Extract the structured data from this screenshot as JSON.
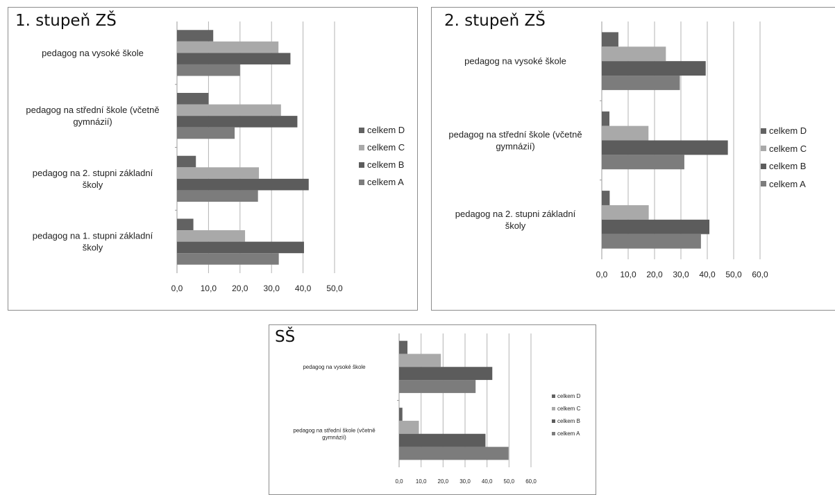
{
  "colors": {
    "celkem A": "#7c7c7c",
    "celkem B": "#5c5c5c",
    "celkem C": "#a9a9a9",
    "celkem D": "#626262",
    "gridline": "#b3b3b3"
  },
  "chart_data": [
    {
      "type": "bar",
      "orientation": "horizontal",
      "title": "1. stupeň ZŠ",
      "categories": [
        "pedagog na vysoké škole",
        "pedagog na střední škole (včetně gymnázií)",
        "pedagog na 2. stupni základní školy",
        "pedagog na 1. stupni základní školy"
      ],
      "series": [
        {
          "name": "celkem D",
          "values": [
            11.5,
            10.0,
            6.0,
            5.2
          ]
        },
        {
          "name": "celkem C",
          "values": [
            32.2,
            33.0,
            26.0,
            21.6
          ]
        },
        {
          "name": "celkem B",
          "values": [
            36.0,
            38.2,
            41.8,
            40.3
          ]
        },
        {
          "name": "celkem A",
          "values": [
            20.0,
            18.3,
            25.7,
            32.3
          ]
        }
      ],
      "xlim": [
        0,
        50
      ],
      "xticks": [
        "0,0",
        "10,0",
        "20,0",
        "30,0",
        "40,0",
        "50,0"
      ],
      "grid": true,
      "legend": "right",
      "legend_entries": [
        "celkem D",
        "celkem C",
        "celkem B",
        "celkem A"
      ]
    },
    {
      "type": "bar",
      "orientation": "horizontal",
      "title": "2. stupeň ZŠ",
      "categories": [
        "pedagog na vysoké škole",
        "pedagog na střední škole (včetně gymnázií)",
        "pedagog na 2. stupni základní školy"
      ],
      "series": [
        {
          "name": "celkem D",
          "values": [
            6.3,
            2.9,
            3.0
          ]
        },
        {
          "name": "celkem C",
          "values": [
            24.3,
            17.7,
            17.8
          ]
        },
        {
          "name": "celkem B",
          "values": [
            39.4,
            47.8,
            40.8
          ]
        },
        {
          "name": "celkem A",
          "values": [
            29.6,
            31.3,
            37.6
          ]
        }
      ],
      "xlim": [
        0,
        60
      ],
      "xticks": [
        "0,0",
        "10,0",
        "20,0",
        "30,0",
        "40,0",
        "50,0",
        "60,0"
      ],
      "grid": true,
      "legend": "right",
      "legend_entries": [
        "celkem D",
        "celkem C",
        "celkem B",
        "celkem A"
      ]
    },
    {
      "type": "bar",
      "orientation": "horizontal",
      "title": "SŠ",
      "categories": [
        "pedagog na vysoké škole",
        "pedagog na střední škole (včetně gymnázií)"
      ],
      "series": [
        {
          "name": "celkem D",
          "values": [
            3.8,
            1.5
          ]
        },
        {
          "name": "celkem C",
          "values": [
            19.0,
            9.0
          ]
        },
        {
          "name": "celkem B",
          "values": [
            42.4,
            39.3
          ]
        },
        {
          "name": "celkem A",
          "values": [
            34.8,
            49.8
          ]
        }
      ],
      "xlim": [
        0,
        60
      ],
      "xticks": [
        "0,0",
        "10,0",
        "20,0",
        "30,0",
        "40,0",
        "50,0",
        "60,0"
      ],
      "grid": true,
      "legend": "right",
      "legend_entries": [
        "celkem D",
        "celkem C",
        "celkem B",
        "celkem A"
      ]
    }
  ]
}
